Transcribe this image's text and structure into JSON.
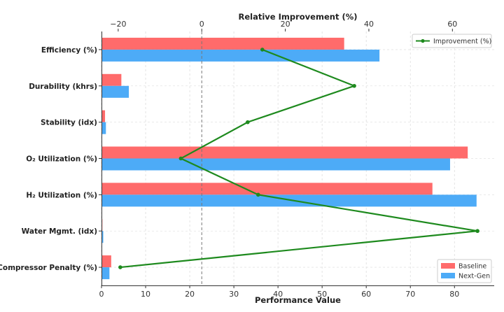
{
  "chart_data": {
    "type": "bar",
    "orientation": "horizontal",
    "categories": [
      "Efficiency (%)",
      "Durability (khrs)",
      "Stability (idx)",
      "O₂ Utilization (%)",
      "H₂ Utilization (%)",
      "Water Mgmt. (idx)",
      "Compressor Penalty (%)"
    ],
    "series": [
      {
        "name": "Baseline",
        "color": "#ff6b6b",
        "values": [
          55,
          4.5,
          0.8,
          83,
          75,
          0.2,
          2.2
        ]
      },
      {
        "name": "Next-Gen",
        "color": "#4dabf7",
        "values": [
          63,
          6.2,
          1.0,
          79,
          85,
          0.4,
          1.8
        ]
      }
    ],
    "xlabel": "Performance Value",
    "xlim": [
      0,
      89
    ],
    "xticks": [
      0,
      10,
      20,
      30,
      40,
      50,
      60,
      70,
      80
    ],
    "secondary_axis": {
      "label": "Relative Improvement (%)",
      "xlim": [
        -24,
        70
      ],
      "xticks": [
        -20,
        0,
        20,
        40,
        60
      ],
      "tick_labels": [
        "−20",
        "0",
        "20",
        "40",
        "60"
      ],
      "reference_line": 0,
      "series": {
        "name": "Improvement (%)",
        "color": "#1e8a1e",
        "values": [
          14.5,
          36.5,
          11,
          -5,
          13.5,
          66,
          -19.5
        ]
      }
    },
    "grid": true,
    "legends": {
      "line": {
        "position": "top-right",
        "entries": [
          "Improvement (%)"
        ]
      },
      "bars": {
        "position": "bottom-right",
        "entries": [
          "Baseline",
          "Next-Gen"
        ]
      }
    }
  }
}
